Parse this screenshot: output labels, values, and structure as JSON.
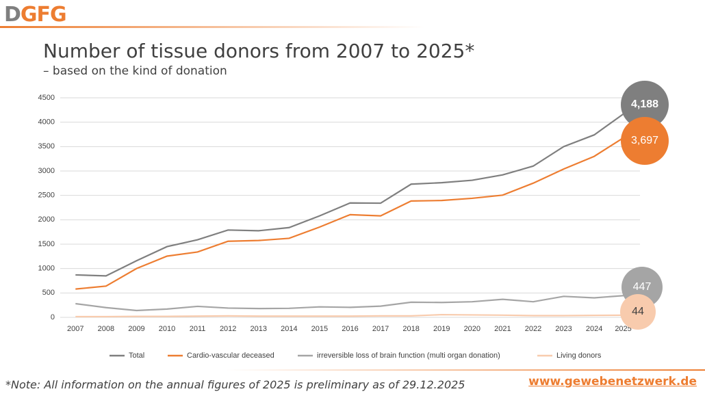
{
  "slide": {
    "logo": "DGFG",
    "footnote": "*Note: All information on the annual figures of 2025 is preliminary as of 29.12.2025",
    "url": "www.gewebenetzwerk.de"
  },
  "chart_data": {
    "type": "line",
    "title": "Number of tissue donors from 2007 to 2025*",
    "subtitle": "– based on the kind of donation",
    "categories": [
      "2007",
      "2008",
      "2009",
      "2010",
      "2011",
      "2012",
      "2013",
      "2014",
      "2015",
      "2016",
      "2017",
      "2018",
      "2019",
      "2020",
      "2021",
      "2022",
      "2023",
      "2024",
      "2025*"
    ],
    "ylim": [
      0,
      4500
    ],
    "yticks": [
      0,
      500,
      1000,
      1500,
      2000,
      2500,
      3000,
      3500,
      4000,
      4500
    ],
    "grid": true,
    "legend": "bottom",
    "series": [
      {
        "name": "Total",
        "color": "#7f7f7f",
        "values": [
          870,
          850,
          1160,
          1450,
          1590,
          1790,
          1775,
          1840,
          2080,
          2345,
          2340,
          2730,
          2760,
          2810,
          2920,
          3100,
          3500,
          3740,
          4188
        ],
        "value_labels": [
          null,
          null,
          null,
          null,
          null,
          null,
          null,
          null,
          null,
          null,
          null,
          null,
          null,
          null,
          null,
          null,
          null,
          null,
          "4,188"
        ]
      },
      {
        "name": "Cardio-vascular deceased",
        "color": "#ed7d31",
        "values": [
          580,
          640,
          1000,
          1255,
          1340,
          1560,
          1575,
          1620,
          1850,
          2105,
          2080,
          2385,
          2395,
          2440,
          2505,
          2750,
          3040,
          3300,
          3697
        ],
        "value_labels": [
          null,
          null,
          null,
          null,
          null,
          null,
          null,
          null,
          null,
          null,
          null,
          null,
          null,
          null,
          null,
          null,
          null,
          null,
          "3,697"
        ]
      },
      {
        "name": "irreversible loss of brain function (multi organ donation)",
        "color": "#a5a5a5",
        "values": [
          280,
          200,
          140,
          170,
          225,
          190,
          180,
          185,
          215,
          205,
          230,
          310,
          305,
          320,
          370,
          320,
          430,
          400,
          447
        ],
        "value_labels": [
          null,
          null,
          null,
          null,
          null,
          null,
          null,
          null,
          null,
          null,
          null,
          null,
          null,
          null,
          null,
          null,
          null,
          null,
          "447"
        ]
      },
      {
        "name": "Living donors",
        "color": "#f8cbad",
        "values": [
          15,
          15,
          20,
          20,
          25,
          30,
          25,
          25,
          25,
          25,
          30,
          30,
          55,
          50,
          45,
          35,
          35,
          40,
          44
        ],
        "value_labels": [
          null,
          null,
          null,
          null,
          null,
          null,
          null,
          null,
          null,
          null,
          null,
          null,
          null,
          null,
          null,
          null,
          null,
          null,
          "44"
        ]
      }
    ]
  }
}
